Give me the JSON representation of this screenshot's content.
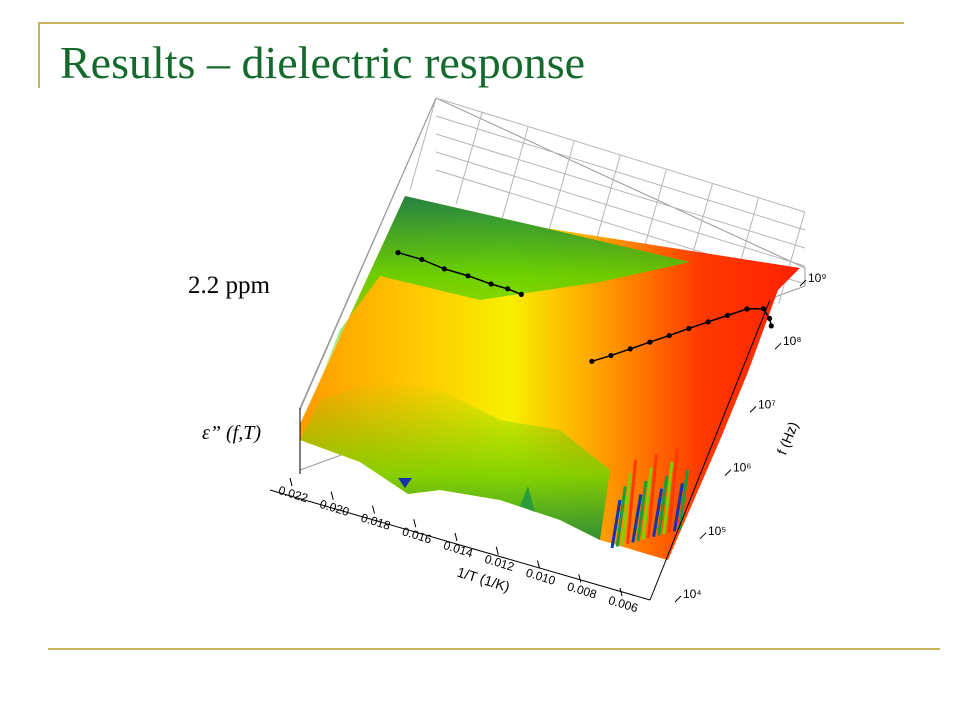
{
  "slide": {
    "title": "Results – dielectric response",
    "annotation": "2.2 ppm",
    "z_label": "ε” (f,T)"
  },
  "colors": {
    "title": "#146a2c",
    "rule": "#c9b45a",
    "colormap": [
      "#1535b0",
      "#1f9a3a",
      "#7fd000",
      "#f5f000",
      "#ffa000",
      "#ff2000"
    ]
  },
  "chart_data": {
    "type": "surface3d",
    "title": "",
    "x_axis": {
      "label": "1/T (1/K)",
      "ticks": [
        "0.022",
        "0.020",
        "0.018",
        "0.016",
        "0.014",
        "0.012",
        "0.010",
        "0.008",
        "0.006"
      ],
      "range": [
        0.022,
        0.006
      ]
    },
    "y_axis": {
      "label": "f (Hz)",
      "scale": "log",
      "ticks": [
        "10⁴",
        "10⁵",
        "10⁶",
        "10⁷",
        "10⁸",
        "10⁹"
      ],
      "range": [
        10000,
        1000000000
      ]
    },
    "z_axis": {
      "label": "ε” (f,T)"
    },
    "grid": true,
    "series": [
      {
        "x": [
          0.0215,
          0.0205,
          0.0195,
          0.0185,
          0.0175,
          0.0168,
          0.0162
        ],
        "y": [
          200000000.0,
          200000000.0,
          180000000.0,
          180000000.0,
          170000000.0,
          170000000.0,
          160000000.0
        ]
      },
      {
        "x": [
          0.0124,
          0.0118,
          0.0112,
          0.0106,
          0.01,
          0.0094,
          0.0088,
          0.0082,
          0.0076,
          0.007,
          0.0066,
          0.0064
        ],
        "y": [
          30000000.0,
          45000000.0,
          70000000.0,
          110000000.0,
          170000000.0,
          270000000.0,
          420000000.0,
          650000000.0,
          1000000000.0,
          1200000000.0,
          900000000.0,
          700000000.0
        ]
      }
    ]
  }
}
